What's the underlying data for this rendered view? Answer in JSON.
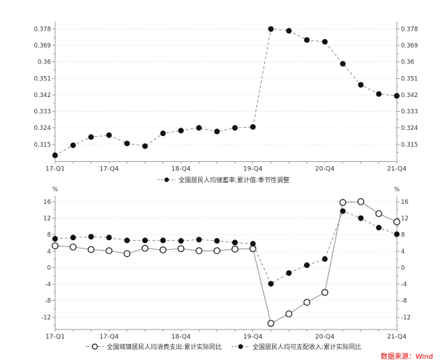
{
  "source": {
    "label": "数据来源：Wind",
    "color": "#e60000"
  },
  "colors": {
    "marker": "#111111",
    "line": "#888888",
    "axis": "#999999",
    "grid": "#dcdcdc",
    "tick_label": "#333333",
    "background": "#ffffff"
  },
  "chart_data": [
    {
      "type": "line",
      "panel": "savings-rate",
      "title": "",
      "xlabel": "",
      "ylabel": "",
      "grid": true,
      "legend_position": "bottom-center",
      "x_categories": [
        "17-Q1",
        "17-Q2",
        "17-Q3",
        "17-Q4",
        "18-Q1",
        "18-Q2",
        "18-Q3",
        "18-Q4",
        "19-Q1",
        "19-Q2",
        "19-Q3",
        "19-Q4",
        "20-Q1",
        "20-Q2",
        "20-Q3",
        "20-Q4",
        "21-Q1",
        "21-Q2",
        "21-Q3",
        "21-Q4"
      ],
      "x_labeled_ticks": [
        {
          "index": 0,
          "label": "17-Q1"
        },
        {
          "index": 3,
          "label": "17-Q4"
        },
        {
          "index": 7,
          "label": "18-Q4"
        },
        {
          "index": 11,
          "label": "19-Q4"
        },
        {
          "index": 15,
          "label": "20-Q4"
        },
        {
          "index": 19,
          "label": "21-Q4"
        }
      ],
      "y_axis": {
        "lim": [
          0.3055,
          0.382
        ],
        "unit": "",
        "label_sides": "both",
        "ticks": [
          {
            "value": 0.315,
            "label": "0.315"
          },
          {
            "value": 0.324,
            "label": "0.324"
          },
          {
            "value": 0.333,
            "label": "0.333"
          },
          {
            "value": 0.342,
            "label": "0.342"
          },
          {
            "value": 0.351,
            "label": "0.351"
          },
          {
            "value": 0.36,
            "label": "0.36"
          },
          {
            "value": 0.369,
            "label": "0.369"
          },
          {
            "value": 0.378,
            "label": "0.378"
          }
        ],
        "minor_ticks": [
          0.3105,
          0.3195,
          0.3285,
          0.3375,
          0.3465,
          0.3555,
          0.3645,
          0.3735
        ]
      },
      "series": [
        {
          "name": "全国居民人均储蓄率:累计值:季节性调整",
          "marker": "filled-circle",
          "line_style": "dashed",
          "values": [
            0.309,
            0.3145,
            0.319,
            0.32,
            0.3155,
            0.314,
            0.321,
            0.3225,
            0.324,
            0.322,
            0.324,
            0.3245,
            0.378,
            0.377,
            0.372,
            0.371,
            0.359,
            0.3475,
            0.3425,
            0.3415
          ]
        }
      ]
    },
    {
      "type": "line",
      "panel": "income-consumption",
      "title": "",
      "xlabel": "",
      "ylabel": "%",
      "grid": true,
      "legend_position": "bottom-center",
      "x_categories": [
        "17-Q1",
        "17-Q2",
        "17-Q3",
        "17-Q4",
        "18-Q1",
        "18-Q2",
        "18-Q3",
        "18-Q4",
        "19-Q1",
        "19-Q2",
        "19-Q3",
        "19-Q4",
        "20-Q1",
        "20-Q2",
        "20-Q3",
        "20-Q4",
        "21-Q1",
        "21-Q2",
        "21-Q3",
        "21-Q4"
      ],
      "x_labeled_ticks": [
        {
          "index": 0,
          "label": "17-Q1"
        },
        {
          "index": 3,
          "label": "17-Q4"
        },
        {
          "index": 7,
          "label": "18-Q4"
        },
        {
          "index": 11,
          "label": "19-Q4"
        },
        {
          "index": 15,
          "label": "20-Q4"
        },
        {
          "index": 19,
          "label": "21-Q4"
        }
      ],
      "y_axis": {
        "lim": [
          -14.95,
          17.5
        ],
        "unit": "%",
        "label_sides": "both",
        "ticks": [
          {
            "value": -12,
            "label": "-12"
          },
          {
            "value": -8,
            "label": "-8"
          },
          {
            "value": -4,
            "label": "-4"
          },
          {
            "value": 0,
            "label": "0"
          },
          {
            "value": 4,
            "label": "4"
          },
          {
            "value": 8,
            "label": "8"
          },
          {
            "value": 12,
            "label": "12"
          },
          {
            "value": 16,
            "label": "16"
          }
        ],
        "minor_ticks": [
          -14,
          -10,
          -6,
          -2,
          2,
          6,
          10,
          14
        ]
      },
      "series": [
        {
          "name": "全国城镇居民人均消费支出:累计实际同比",
          "marker": "open-circle",
          "line_style": "solid",
          "values": [
            5.3,
            5.0,
            4.4,
            4.1,
            3.4,
            4.7,
            4.3,
            4.6,
            4.1,
            4.1,
            4.5,
            4.6,
            -13.5,
            -11.2,
            -8.4,
            -6.0,
            15.8,
            16.0,
            13.1,
            11.1
          ]
        },
        {
          "name": "全国居民人均可支配收入:累计实际同比",
          "marker": "filled-circle",
          "line_style": "dashed",
          "values": [
            7.0,
            7.3,
            7.5,
            7.3,
            6.6,
            6.6,
            6.6,
            6.5,
            6.8,
            6.5,
            6.1,
            5.8,
            -3.9,
            -1.3,
            0.6,
            2.1,
            13.7,
            12.0,
            9.7,
            8.1
          ]
        }
      ]
    }
  ]
}
